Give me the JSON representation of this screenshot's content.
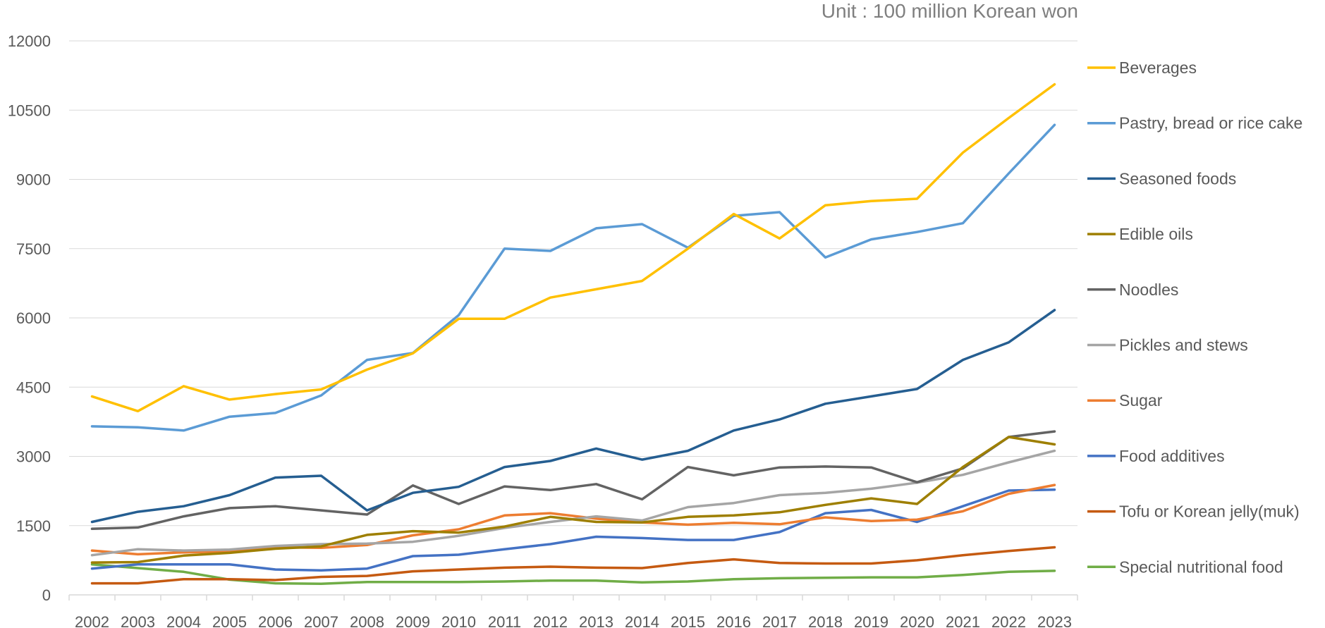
{
  "unit_note": "Unit : 100 million Korean won",
  "chart_data": {
    "type": "line",
    "title": "",
    "xlabel": "",
    "ylabel": "",
    "ylim": [
      0,
      12000
    ],
    "yticks": [
      0,
      1500,
      3000,
      4500,
      6000,
      7500,
      9000,
      10500,
      12000
    ],
    "x": [
      "2002",
      "2003",
      "2004",
      "2005",
      "2006",
      "2007",
      "2008",
      "2009",
      "2010",
      "2011",
      "2012",
      "2013",
      "2014",
      "2015",
      "2016",
      "2017",
      "2018",
      "2019",
      "2020",
      "2021",
      "2022",
      "2023"
    ],
    "grid": true,
    "legend": "right",
    "series": [
      {
        "name": "Beverages",
        "color": "#FFC000",
        "values": [
          4300,
          3980,
          4520,
          4230,
          4350,
          4450,
          4880,
          5230,
          5980,
          5980,
          6440,
          6620,
          6800,
          7500,
          8250,
          7720,
          8440,
          8530,
          8580,
          9580,
          10330,
          11060
        ]
      },
      {
        "name": "Pastry, bread or rice cake",
        "color": "#5B9BD5",
        "values": [
          3650,
          3630,
          3560,
          3860,
          3940,
          4320,
          5090,
          5240,
          6060,
          7500,
          7450,
          7940,
          8030,
          7520,
          8210,
          8290,
          7310,
          7700,
          7860,
          8050,
          9130,
          10180
        ]
      },
      {
        "name": "Seasoned foods",
        "color": "#255E91",
        "values": [
          1580,
          1800,
          1920,
          2160,
          2540,
          2580,
          1830,
          2210,
          2340,
          2770,
          2900,
          3170,
          2930,
          3120,
          3560,
          3800,
          4140,
          4300,
          4460,
          5090,
          5470,
          6170
        ]
      },
      {
        "name": "Edible oils",
        "color": "#9E7F00",
        "values": [
          700,
          710,
          850,
          910,
          1000,
          1050,
          1300,
          1380,
          1350,
          1480,
          1690,
          1580,
          1570,
          1690,
          1720,
          1790,
          1950,
          2090,
          1970,
          2770,
          3420,
          3260
        ]
      },
      {
        "name": "Noodles",
        "color": "#636363",
        "values": [
          1430,
          1460,
          1700,
          1880,
          1920,
          1830,
          1740,
          2370,
          1970,
          2350,
          2270,
          2400,
          2070,
          2770,
          2590,
          2760,
          2780,
          2760,
          2440,
          2740,
          3420,
          3540
        ]
      },
      {
        "name": "Pickles and stews",
        "color": "#A5A5A5",
        "values": [
          860,
          990,
          960,
          980,
          1060,
          1100,
          1110,
          1150,
          1280,
          1450,
          1580,
          1700,
          1610,
          1900,
          1990,
          2160,
          2210,
          2300,
          2430,
          2600,
          2870,
          3120
        ]
      },
      {
        "name": "Sugar",
        "color": "#ED7D31",
        "values": [
          960,
          880,
          920,
          940,
          1030,
          1020,
          1080,
          1290,
          1420,
          1720,
          1770,
          1650,
          1570,
          1520,
          1560,
          1530,
          1680,
          1600,
          1630,
          1810,
          2190,
          2380
        ]
      },
      {
        "name": "Food additives",
        "color": "#4472C4",
        "values": [
          570,
          660,
          660,
          660,
          550,
          530,
          570,
          840,
          870,
          990,
          1100,
          1260,
          1230,
          1190,
          1190,
          1360,
          1770,
          1840,
          1580,
          1920,
          2260,
          2280
        ]
      },
      {
        "name": "Tofu or Korean jelly(muk)",
        "color": "#C55A11",
        "values": [
          250,
          250,
          340,
          340,
          320,
          390,
          410,
          510,
          550,
          590,
          610,
          590,
          580,
          690,
          770,
          690,
          680,
          680,
          750,
          860,
          950,
          1030
        ]
      },
      {
        "name": "Special nutritional food",
        "color": "#70AD47",
        "values": [
          660,
          580,
          500,
          330,
          250,
          240,
          280,
          280,
          280,
          290,
          310,
          310,
          270,
          290,
          340,
          360,
          370,
          380,
          380,
          430,
          500,
          520
        ]
      }
    ]
  }
}
